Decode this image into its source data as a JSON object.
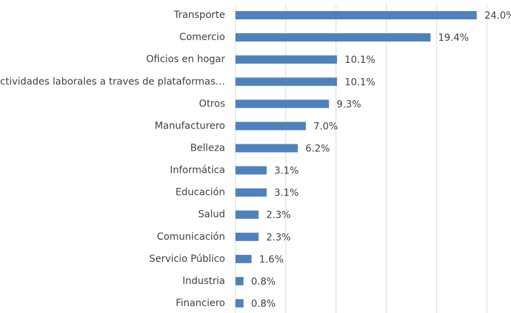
{
  "chart_data": {
    "type": "bar",
    "orientation": "horizontal",
    "categories": [
      "Transporte",
      "Comercio",
      "Oficios en hogar",
      "Actividades laborales a traves de plataformas…",
      "Otros",
      "Manufacturero",
      "Belleza",
      "Informática",
      "Educación",
      "Salud",
      "Comunicación",
      "Servicio Público",
      "Industria",
      "Financiero"
    ],
    "values": [
      24.0,
      19.4,
      10.1,
      10.1,
      9.3,
      7.0,
      6.2,
      3.1,
      3.1,
      2.3,
      2.3,
      1.6,
      0.8,
      0.8
    ],
    "value_labels": [
      "24.0%",
      "19.4%",
      "10.1%",
      "10.1%",
      "9.3%",
      "7.0%",
      "6.2%",
      "3.1%",
      "3.1%",
      "2.3%",
      "2.3%",
      "1.6%",
      "0.8%",
      "0.8%"
    ],
    "color": "#4f81bd",
    "xlim": [
      0,
      25
    ],
    "xticks": [
      0,
      5,
      10,
      15,
      20,
      25
    ],
    "grid": true
  }
}
